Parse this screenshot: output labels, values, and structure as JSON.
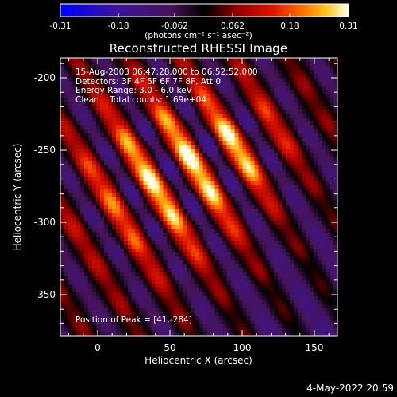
{
  "colorbar": {
    "tick_labels": [
      "-0.31",
      "-0.18",
      "-0.062",
      "0.062",
      "0.18",
      "0.31"
    ],
    "unit": "(photons cm⁻² s⁻¹ asec⁻²)"
  },
  "plot": {
    "title": "Reconstructed RHESSI Image",
    "info_lines": [
      "15-Aug-2003 06:47:28.000 to 06:52:52.000",
      "Detectors: 3F 4F 5F 6F 7F 8F, Att 0",
      "Energy Range: 3.0 - 6.0 keV",
      "Clean    Total counts: 1.69e+04"
    ],
    "peak_text": "Position of Peak = [41,-284]",
    "x_label": "Heliocentric X (arcsec)",
    "y_label": "Heliocentric Y (arcsec)",
    "x_ticks": [
      "0",
      "50",
      "100",
      "150"
    ],
    "y_ticks": [
      "-200",
      "-250",
      "-300",
      "-350"
    ]
  },
  "footer": {
    "date": "4-May-2022 20:59"
  },
  "colors": {
    "background": "#000000",
    "text": "#ffffff"
  }
}
